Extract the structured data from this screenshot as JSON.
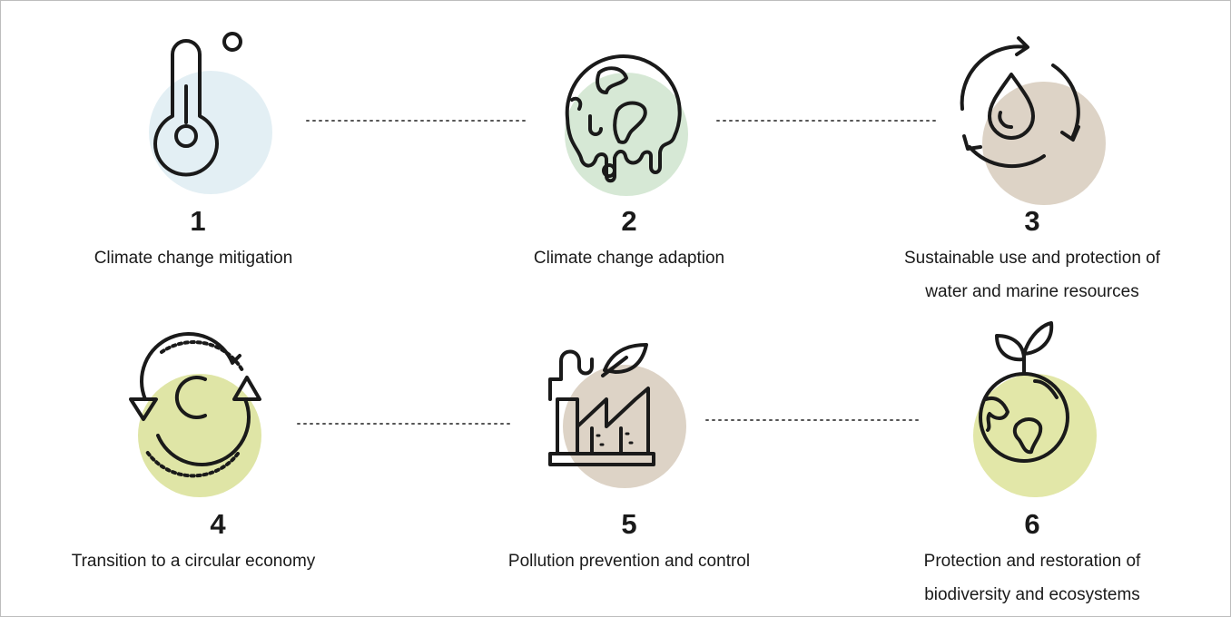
{
  "items": [
    {
      "number": 1,
      "label": [
        "Climate change mitigation"
      ]
    },
    {
      "number": 2,
      "label": [
        "Climate change adaption"
      ]
    },
    {
      "number": 3,
      "label": [
        "Sustainable use and protection of",
        "water and marine resources"
      ]
    },
    {
      "number": 4,
      "label": [
        "Transition to a circular economy"
      ]
    },
    {
      "number": 5,
      "label": [
        "Pollution prevention and control"
      ]
    },
    {
      "number": 6,
      "label": [
        "Protection and restoration of",
        "biodiversity and ecosystems"
      ]
    }
  ]
}
